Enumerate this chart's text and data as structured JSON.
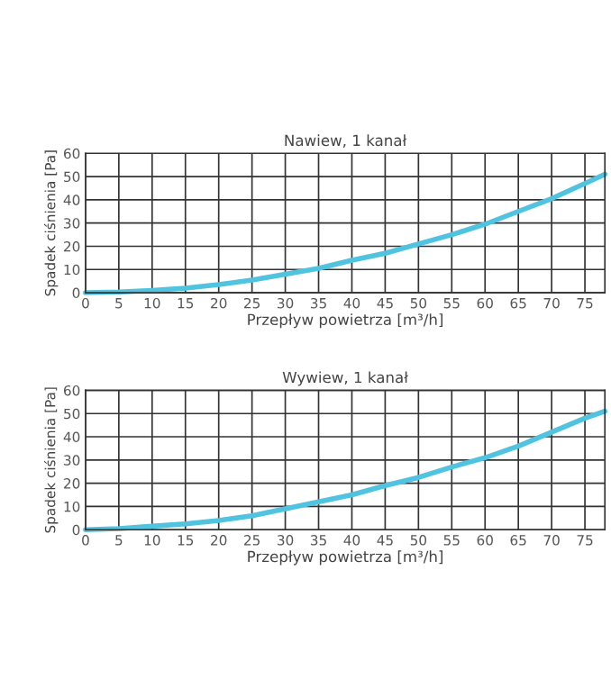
{
  "chart_data": [
    {
      "type": "line",
      "title": "Nawiew, 1 kanał",
      "xlabel": "Przepływ powietrza [m³/h]",
      "ylabel": "Spadek ciśnienia [Pa]",
      "xlim": [
        0,
        78
      ],
      "ylim": [
        0,
        60
      ],
      "xticks": [
        0,
        5,
        10,
        15,
        20,
        25,
        30,
        35,
        40,
        45,
        50,
        55,
        60,
        65,
        70,
        75
      ],
      "yticks": [
        0,
        10,
        20,
        30,
        40,
        50,
        60
      ],
      "grid": true,
      "marker": "none",
      "line_style": "solid",
      "series": [
        {
          "color": "#4fc3e0",
          "x": [
            0,
            5,
            10,
            15,
            20,
            25,
            30,
            35,
            40,
            45,
            50,
            55,
            60,
            65,
            70,
            75,
            78
          ],
          "values": [
            0,
            0.3,
            1,
            2,
            3.5,
            5.5,
            8,
            10.5,
            14,
            17,
            21,
            25,
            29.5,
            35,
            40.5,
            47,
            51
          ]
        }
      ]
    },
    {
      "type": "line",
      "title": "Wywiew, 1 kanał",
      "xlabel": "Przepływ powietrza [m³/h]",
      "ylabel": "Spadek ciśnienia [Pa]",
      "xlim": [
        0,
        78
      ],
      "ylim": [
        0,
        60
      ],
      "xticks": [
        0,
        5,
        10,
        15,
        20,
        25,
        30,
        35,
        40,
        45,
        50,
        55,
        60,
        65,
        70,
        75
      ],
      "yticks": [
        0,
        10,
        20,
        30,
        40,
        50,
        60
      ],
      "grid": true,
      "marker": "none",
      "line_style": "solid",
      "series": [
        {
          "color": "#4fc3e0",
          "x": [
            0,
            5,
            10,
            15,
            20,
            25,
            30,
            35,
            40,
            45,
            50,
            55,
            60,
            65,
            70,
            75,
            78
          ],
          "values": [
            0,
            0.5,
            1.5,
            2.5,
            4,
            6,
            9,
            12,
            15,
            19,
            22.5,
            27,
            31,
            36,
            42,
            48,
            51
          ]
        }
      ]
    }
  ]
}
